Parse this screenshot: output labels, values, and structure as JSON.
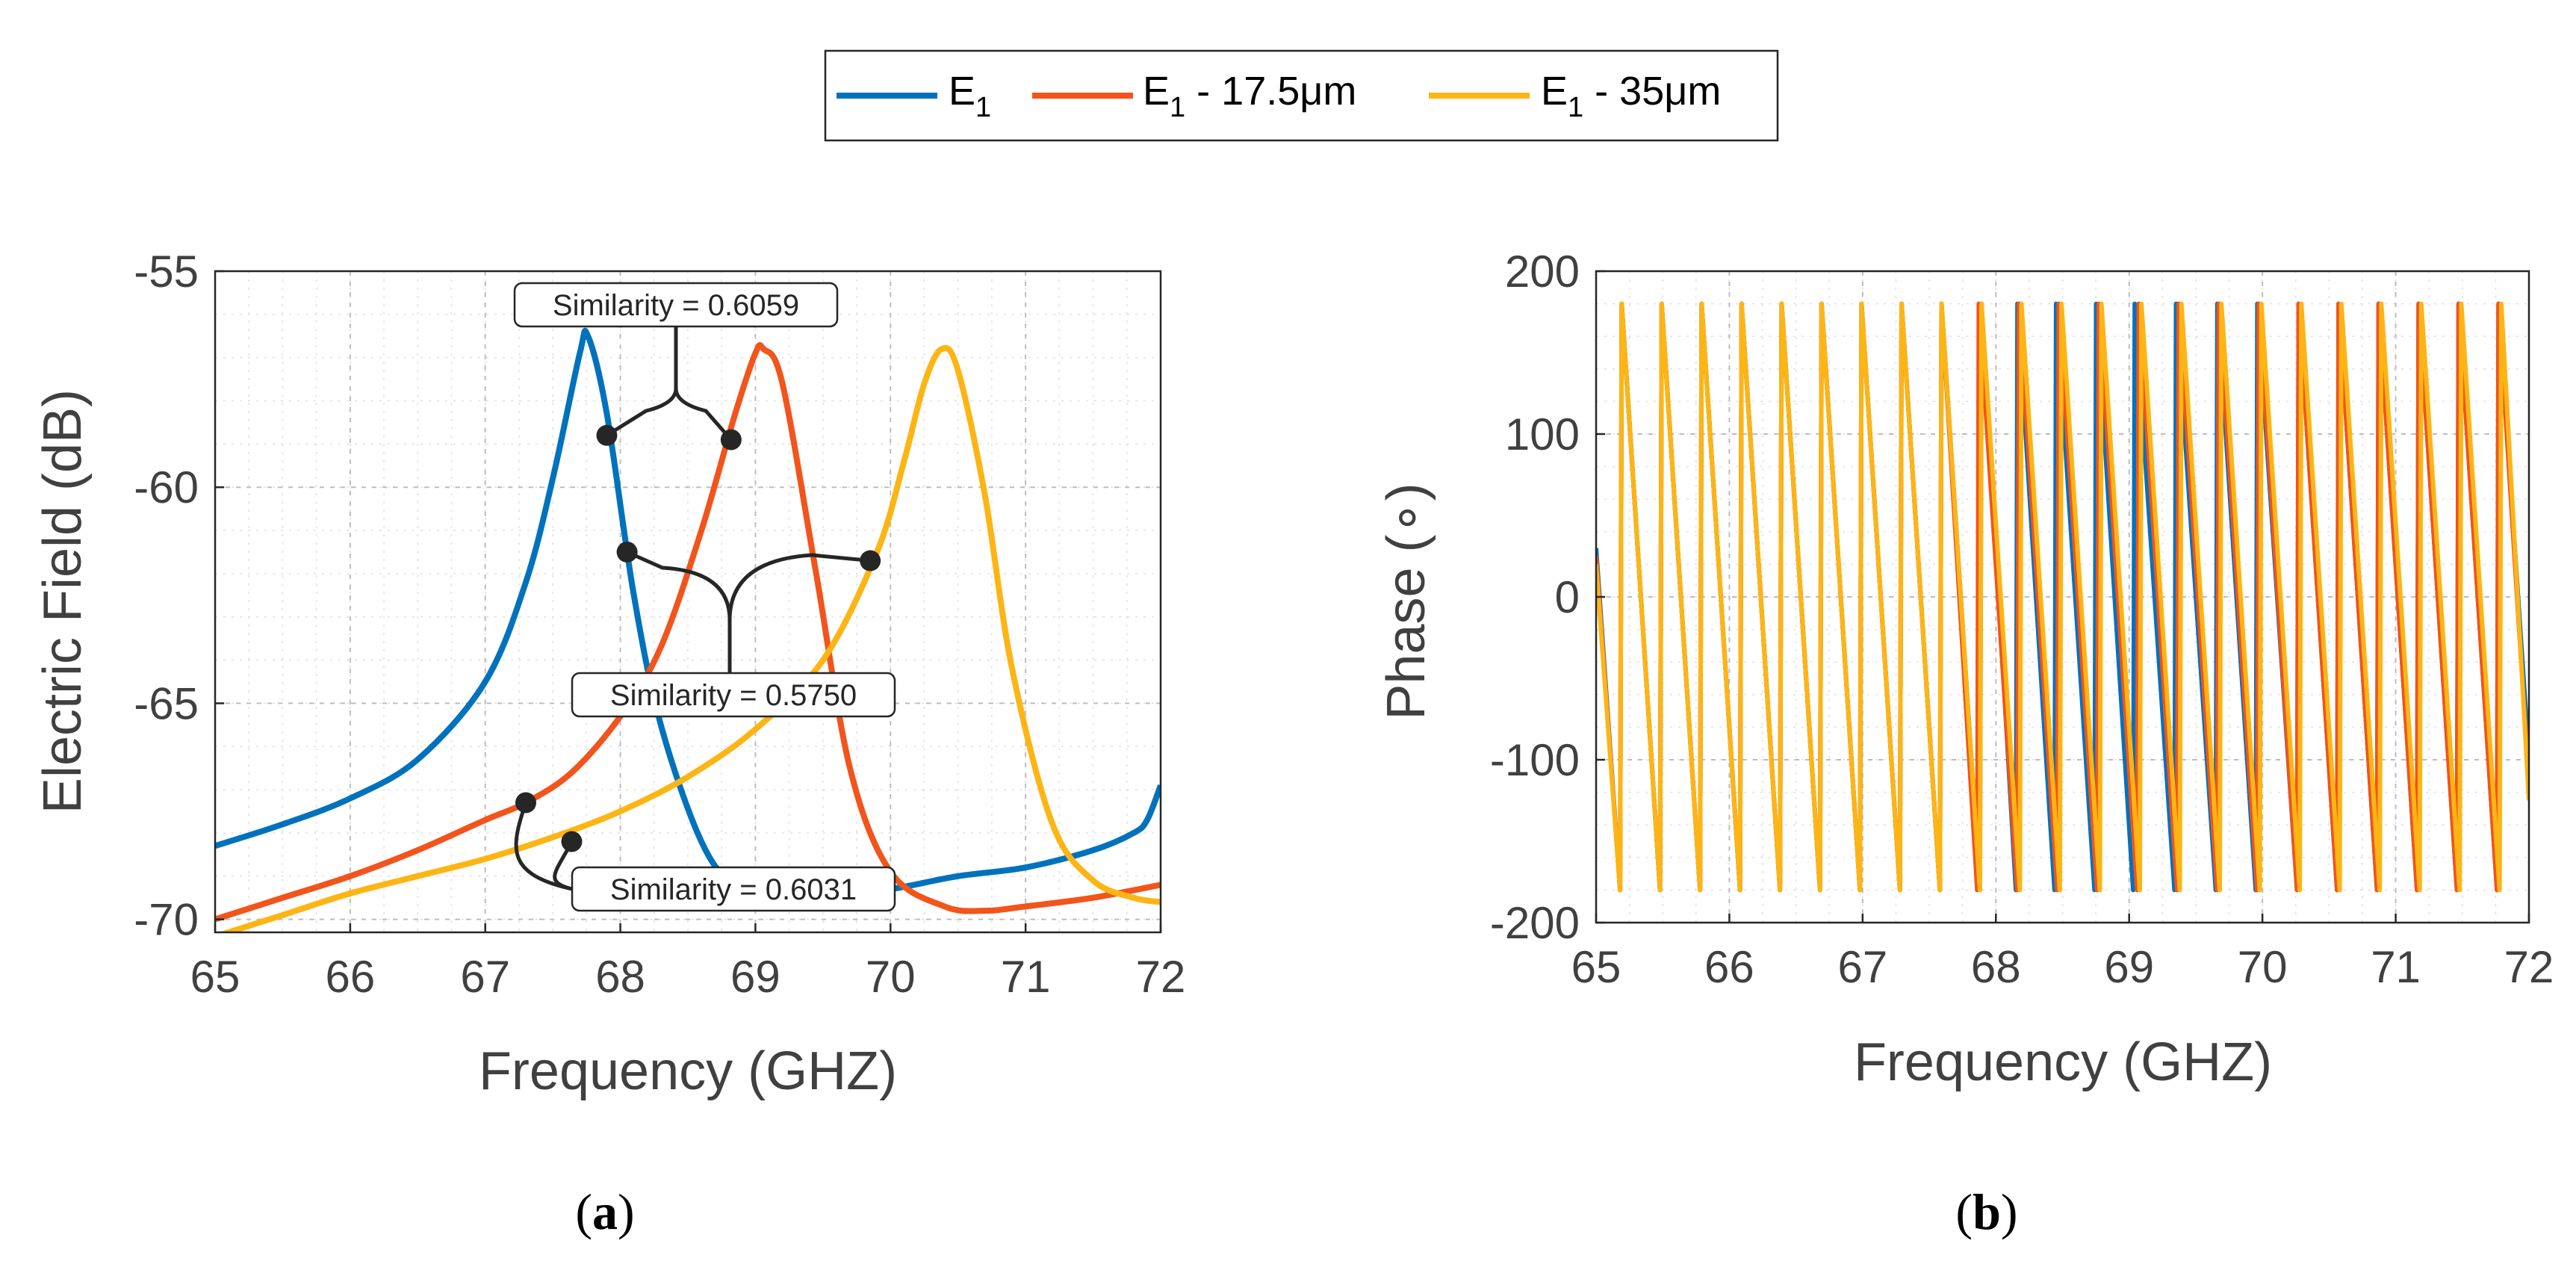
{
  "legend": {
    "entries": [
      {
        "base": "E",
        "sub": "1",
        "suffix": "",
        "color": "#0072BD"
      },
      {
        "base": "E",
        "sub": "1",
        "suffix": " - 17.5μm",
        "color": "#F2541B"
      },
      {
        "base": "E",
        "sub": "1",
        "suffix": " - 35μm",
        "color": "#FDB515"
      }
    ]
  },
  "panel_labels": {
    "a": {
      "open": "(",
      "letter": "a",
      "close": ")"
    },
    "b": {
      "open": "(",
      "letter": "b",
      "close": ")"
    }
  },
  "chart_data": [
    {
      "id": "a",
      "type": "line",
      "title": "",
      "xlabel": "Frequency (GHZ)",
      "ylabel": "Electric Field (dB)",
      "xlim": [
        65,
        72
      ],
      "ylim": [
        -70.3,
        -55
      ],
      "xticks": [
        65,
        66,
        67,
        68,
        69,
        70,
        71,
        72
      ],
      "yticks": [
        -70,
        -65,
        -60,
        -55
      ],
      "grid": true,
      "series": [
        {
          "name": "E1",
          "color": "#0072BD",
          "x": [
            65,
            65.5,
            66,
            66.5,
            67,
            67.3,
            67.5,
            67.7,
            67.76,
            67.9,
            68.1,
            68.3,
            68.6,
            68.85,
            69.2,
            69.6,
            70,
            70.5,
            71,
            71.5,
            71.8,
            71.9,
            72
          ],
          "y": [
            -68.3,
            -67.8,
            -67.2,
            -66.3,
            -64.5,
            -62.2,
            -59.8,
            -56.9,
            -56.5,
            -58.3,
            -62.5,
            -65.5,
            -68.2,
            -69.2,
            -69.5,
            -69.4,
            -69.3,
            -69.0,
            -68.8,
            -68.4,
            -68.0,
            -67.7,
            -66.9
          ]
        },
        {
          "name": "E1 - 17.5μm",
          "color": "#F2541B",
          "x": [
            65,
            65.5,
            66,
            66.5,
            67,
            67.3,
            67.64,
            68,
            68.3,
            68.6,
            68.85,
            69,
            69.06,
            69.2,
            69.45,
            69.7,
            70,
            70.4,
            70.7,
            71,
            71.5,
            72
          ],
          "y": [
            -70.0,
            -69.5,
            -69.0,
            -68.4,
            -67.7,
            -67.3,
            -66.6,
            -65.3,
            -63.7,
            -61.0,
            -58.3,
            -56.9,
            -56.8,
            -57.6,
            -62.0,
            -66.5,
            -68.9,
            -69.7,
            -69.8,
            -69.7,
            -69.5,
            -69.2
          ]
        },
        {
          "name": "E1 - 35μm",
          "color": "#FDB515",
          "x": [
            65,
            65.5,
            66,
            66.5,
            67,
            67.5,
            68,
            68.5,
            69,
            69.5,
            69.9,
            70.1,
            70.25,
            70.38,
            70.5,
            70.7,
            70.9,
            71.2,
            71.5,
            71.8,
            72
          ],
          "y": [
            -70.4,
            -69.9,
            -69.4,
            -69.0,
            -68.6,
            -68.1,
            -67.5,
            -66.7,
            -65.6,
            -64.0,
            -61.5,
            -59.4,
            -57.6,
            -56.8,
            -57.3,
            -60.2,
            -64.2,
            -67.8,
            -69.1,
            -69.5,
            -69.6
          ]
        }
      ],
      "annotations": [
        {
          "text": "Similarity = 0.6059",
          "points": [
            [
              67.9,
              -58.8
            ],
            [
              68.82,
              -58.9
            ]
          ]
        },
        {
          "text": "Similarity = 0.5750",
          "points": [
            [
              68.05,
              -61.5
            ],
            [
              69.85,
              -61.7
            ]
          ]
        },
        {
          "text": "Similarity = 0.6031",
          "points": [
            [
              67.3,
              -67.3
            ],
            [
              67.64,
              -68.2
            ]
          ]
        }
      ]
    },
    {
      "id": "b",
      "type": "line",
      "title": "",
      "xlabel": "Frequency (GHZ)",
      "ylabel": "Phase (∘)",
      "xlim": [
        65,
        72
      ],
      "ylim": [
        -200,
        200
      ],
      "xticks": [
        65,
        66,
        67,
        68,
        69,
        70,
        71,
        72
      ],
      "yticks": [
        -200,
        -100,
        0,
        100,
        200
      ],
      "grid": true,
      "phase_range": [
        -180,
        180
      ],
      "series": [
        {
          "name": "E1",
          "color": "#0072BD",
          "start_x": 65,
          "start_y": 30,
          "wrap_x": [
            65.18,
            65.48,
            65.78,
            66.08,
            66.38,
            66.68,
            66.98,
            67.28,
            67.58,
            67.88,
            68.15,
            68.44,
            68.74,
            69.03,
            69.34,
            69.65,
            69.95,
            70.26,
            70.56,
            70.86,
            71.16,
            71.46,
            71.76
          ],
          "end_y": -100
        },
        {
          "name": "E1 - 17.5μm",
          "color": "#F2541B",
          "start_x": 65,
          "start_y": 25,
          "wrap_x": [
            65.18,
            65.48,
            65.78,
            66.08,
            66.38,
            66.68,
            66.98,
            67.28,
            67.58,
            67.86,
            68.16,
            68.46,
            68.76,
            69.06,
            69.36,
            69.66,
            69.96,
            70.26,
            70.56,
            70.86,
            71.16,
            71.46,
            71.76
          ],
          "end_y": -115
        },
        {
          "name": "E1 - 35μm",
          "color": "#FDB515",
          "start_x": 65,
          "start_y": 20,
          "wrap_x": [
            65.18,
            65.48,
            65.78,
            66.08,
            66.38,
            66.68,
            66.98,
            67.28,
            67.58,
            67.88,
            68.18,
            68.48,
            68.78,
            69.08,
            69.38,
            69.68,
            69.98,
            70.28,
            70.58,
            70.88,
            71.18,
            71.48,
            71.78
          ],
          "end_y": -125
        }
      ]
    }
  ]
}
